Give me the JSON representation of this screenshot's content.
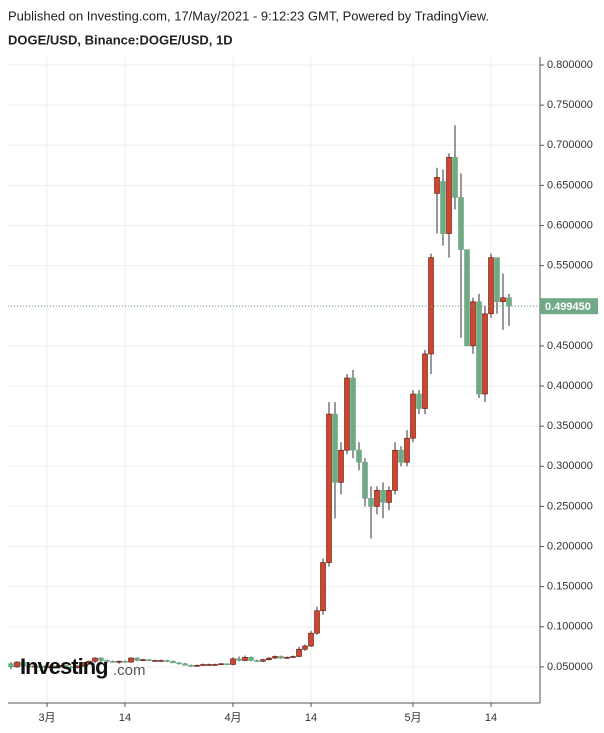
{
  "header": {
    "published": "Published on Investing.com, 17/May/2021 - 9:12:23 GMT, Powered by TradingView.",
    "symbol": "DOGE/USD, Binance:DOGE/USD, 1D"
  },
  "chart_data": {
    "type": "candlestick",
    "watermark_main": "Investing",
    "watermark_suffix": ".com",
    "categories": [
      null,
      null,
      null,
      null,
      null,
      null,
      "3月",
      null,
      null,
      null,
      null,
      null,
      null,
      null,
      null,
      null,
      null,
      null,
      null,
      "14",
      null,
      null,
      null,
      null,
      null,
      null,
      null,
      null,
      null,
      null,
      null,
      null,
      null,
      null,
      null,
      null,
      null,
      "4月",
      null,
      null,
      null,
      null,
      null,
      null,
      null,
      null,
      null,
      null,
      null,
      null,
      "14",
      null,
      null,
      null,
      null,
      null,
      null,
      null,
      null,
      null,
      null,
      null,
      null,
      null,
      null,
      null,
      null,
      "5月",
      null,
      null,
      null,
      null,
      null,
      null,
      null,
      null,
      null,
      null,
      null,
      null,
      "14",
      null,
      null,
      null
    ],
    "open": [
      0.054,
      0.05,
      0.056,
      0.051,
      0.05,
      0.051,
      0.049,
      0.051,
      0.05,
      0.052,
      0.05,
      0.049,
      0.051,
      0.055,
      0.057,
      0.061,
      0.058,
      0.057,
      0.056,
      0.057,
      0.056,
      0.061,
      0.058,
      0.059,
      0.058,
      0.058,
      0.058,
      0.057,
      0.055,
      0.054,
      0.052,
      0.051,
      0.052,
      0.053,
      0.053,
      0.053,
      0.054,
      0.053,
      0.06,
      0.058,
      0.062,
      0.058,
      0.057,
      0.059,
      0.061,
      0.063,
      0.061,
      0.062,
      0.063,
      0.072,
      0.076,
      0.092,
      0.12,
      0.18,
      0.365,
      0.28,
      0.32,
      0.41,
      0.32,
      0.305,
      0.26,
      0.25,
      0.27,
      0.255,
      0.27,
      0.32,
      0.305,
      0.335,
      0.39,
      0.372,
      0.44,
      0.64,
      0.655,
      0.59,
      0.685,
      0.635,
      0.57,
      0.45,
      0.505,
      0.39,
      0.49,
      0.56,
      0.505,
      0.51
    ],
    "high": [
      0.056,
      0.057,
      0.057,
      0.053,
      0.052,
      0.052,
      0.052,
      0.052,
      0.053,
      0.053,
      0.051,
      0.052,
      0.056,
      0.058,
      0.062,
      0.062,
      0.059,
      0.058,
      0.058,
      0.058,
      0.062,
      0.062,
      0.06,
      0.06,
      0.059,
      0.059,
      0.059,
      0.058,
      0.056,
      0.055,
      0.053,
      0.053,
      0.054,
      0.054,
      0.054,
      0.054,
      0.054,
      0.062,
      0.063,
      0.064,
      0.063,
      0.059,
      0.06,
      0.062,
      0.064,
      0.064,
      0.063,
      0.064,
      0.075,
      0.078,
      0.095,
      0.125,
      0.185,
      0.38,
      0.38,
      0.33,
      0.415,
      0.42,
      0.33,
      0.31,
      0.275,
      0.275,
      0.28,
      0.275,
      0.33,
      0.325,
      0.345,
      0.395,
      0.395,
      0.445,
      0.565,
      0.672,
      0.67,
      0.69,
      0.725,
      0.665,
      0.57,
      0.51,
      0.515,
      0.5,
      0.565,
      0.56,
      0.54,
      0.515
    ],
    "low": [
      0.047,
      0.049,
      0.05,
      0.048,
      0.049,
      0.046,
      0.048,
      0.049,
      0.049,
      0.049,
      0.048,
      0.048,
      0.05,
      0.053,
      0.055,
      0.056,
      0.055,
      0.055,
      0.054,
      0.055,
      0.055,
      0.057,
      0.057,
      0.057,
      0.057,
      0.057,
      0.056,
      0.055,
      0.053,
      0.052,
      0.05,
      0.051,
      0.052,
      0.052,
      0.052,
      0.053,
      0.052,
      0.052,
      0.057,
      0.057,
      0.057,
      0.056,
      0.056,
      0.058,
      0.06,
      0.06,
      0.06,
      0.061,
      0.062,
      0.07,
      0.075,
      0.09,
      0.115,
      0.175,
      0.235,
      0.265,
      0.315,
      0.31,
      0.295,
      0.25,
      0.21,
      0.24,
      0.235,
      0.245,
      0.265,
      0.3,
      0.3,
      0.33,
      0.365,
      0.365,
      0.415,
      0.59,
      0.575,
      0.56,
      0.62,
      0.46,
      0.45,
      0.44,
      0.385,
      0.38,
      0.485,
      0.49,
      0.47,
      0.475
    ],
    "close": [
      0.05,
      0.056,
      0.051,
      0.05,
      0.051,
      0.049,
      0.051,
      0.05,
      0.052,
      0.05,
      0.049,
      0.051,
      0.055,
      0.057,
      0.061,
      0.058,
      0.057,
      0.056,
      0.057,
      0.056,
      0.061,
      0.058,
      0.059,
      0.058,
      0.058,
      0.058,
      0.057,
      0.055,
      0.054,
      0.052,
      0.051,
      0.052,
      0.053,
      0.053,
      0.053,
      0.054,
      0.053,
      0.06,
      0.058,
      0.062,
      0.058,
      0.057,
      0.059,
      0.061,
      0.063,
      0.061,
      0.062,
      0.063,
      0.072,
      0.076,
      0.092,
      0.12,
      0.18,
      0.365,
      0.28,
      0.32,
      0.41,
      0.32,
      0.305,
      0.26,
      0.25,
      0.27,
      0.255,
      0.27,
      0.32,
      0.305,
      0.335,
      0.39,
      0.372,
      0.44,
      0.56,
      0.66,
      0.59,
      0.685,
      0.635,
      0.57,
      0.45,
      0.505,
      0.39,
      0.49,
      0.56,
      0.505,
      0.51,
      0.49945
    ],
    "last_price_label": "0.499450",
    "up_color": "#d0452f",
    "down_color": "#6fa985",
    "wick_color": "#333333",
    "ylim": [
      0.005,
      0.81
    ],
    "yticks": [
      {
        "value": 0.05,
        "label": "0.050000"
      },
      {
        "value": 0.1,
        "label": "0.100000"
      },
      {
        "value": 0.15,
        "label": "0.150000"
      },
      {
        "value": 0.2,
        "label": "0.200000"
      },
      {
        "value": 0.25,
        "label": "0.250000"
      },
      {
        "value": 0.3,
        "label": "0.300000"
      },
      {
        "value": 0.35,
        "label": "0.350000"
      },
      {
        "value": 0.4,
        "label": "0.400000"
      },
      {
        "value": 0.45,
        "label": "0.450000"
      },
      {
        "value": 0.5,
        "label": "0.500000"
      },
      {
        "value": 0.55,
        "label": "0.550000"
      },
      {
        "value": 0.6,
        "label": "0.600000"
      },
      {
        "value": 0.65,
        "label": "0.650000"
      },
      {
        "value": 0.7,
        "label": "0.700000"
      },
      {
        "value": 0.75,
        "label": "0.750000"
      },
      {
        "value": 0.8,
        "label": "0.800000"
      }
    ],
    "grid": true
  }
}
